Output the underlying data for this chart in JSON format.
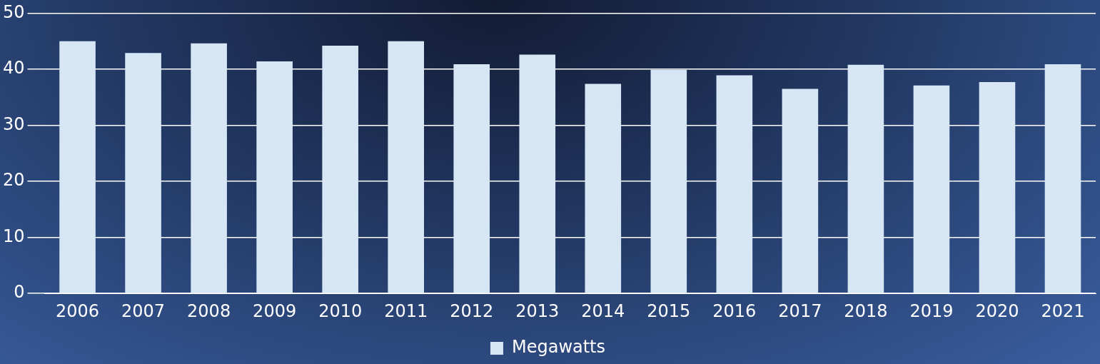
{
  "chart_data": {
    "type": "bar",
    "categories": [
      "2006",
      "2007",
      "2008",
      "2009",
      "2010",
      "2011",
      "2012",
      "2013",
      "2014",
      "2015",
      "2016",
      "2017",
      "2018",
      "2019",
      "2020",
      "2021"
    ],
    "series": [
      {
        "name": "Megawatts",
        "color": "#d6e6f5",
        "values": [
          45.0,
          42.9,
          44.6,
          41.4,
          44.2,
          45.0,
          40.9,
          42.6,
          37.4,
          39.9,
          38.9,
          36.5,
          40.8,
          37.1,
          37.7,
          40.9
        ]
      }
    ],
    "ylim": [
      0,
      50
    ],
    "yticks": [
      0,
      10,
      20,
      30,
      40,
      50
    ],
    "grid": "y",
    "legend": "bottom"
  }
}
